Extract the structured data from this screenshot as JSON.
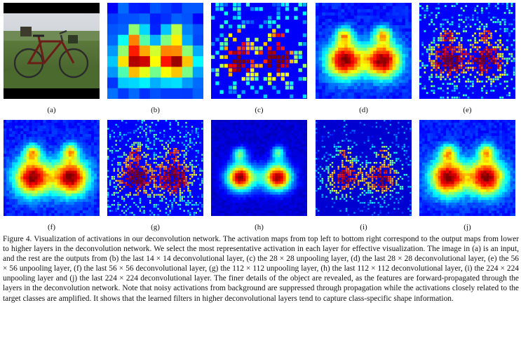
{
  "figure": {
    "panels": [
      {
        "id": "a",
        "label": "(a)",
        "kind": "photo"
      },
      {
        "id": "b",
        "label": "(b)",
        "kind": "coarse"
      },
      {
        "id": "c",
        "label": "(c)",
        "kind": "sparse"
      },
      {
        "id": "d",
        "label": "(d)",
        "kind": "blob"
      },
      {
        "id": "e",
        "label": "(e)",
        "kind": "dots"
      },
      {
        "id": "f",
        "label": "(f)",
        "kind": "blob"
      },
      {
        "id": "g",
        "label": "(g)",
        "kind": "dots"
      },
      {
        "id": "h",
        "label": "(h)",
        "kind": "blob"
      },
      {
        "id": "i",
        "label": "(i)",
        "kind": "dots"
      },
      {
        "id": "j",
        "label": "(j)",
        "kind": "blob"
      }
    ],
    "caption": "Figure 4. Visualization of activations in our deconvolution network. The activation maps from top left to bottom right correspond to the output maps from lower to higher layers in the deconvolution network. We select the most representative activation in each layer for effective visualization. The image in (a) is an input, and the rest are the outputs from (b) the last 14 × 14 deconvolutional layer, (c) the 28 × 28 unpooling layer, (d) the last 28 × 28 deconvolutional layer, (e) the 56 × 56 unpooling layer, (f) the last 56 × 56 deconvolutional layer, (g) the 112 × 112 unpooling layer, (h) the last 112 × 112 deconvolutional layer, (i) the 224 × 224 unpooling layer and (j) the last 224 × 224 deconvolutional layer. The finer details of the object are revealed, as the features are forward-propagated through the layers in the deconvolution network. Note that noisy activations from background are suppressed through propagation while the activations closely related to the target classes are amplified. It shows that the learned filters in higher deconvolutional layers tend to capture class-specific shape information."
  }
}
